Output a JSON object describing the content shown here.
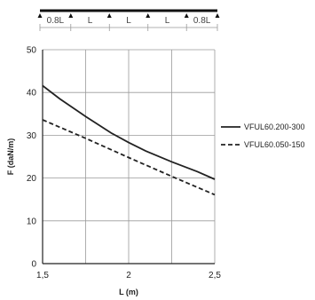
{
  "chart_data": {
    "type": "line",
    "xlabel": "L (m)",
    "ylabel": "F (daN/m)",
    "xlim": [
      1.5,
      2.5
    ],
    "ylim": [
      0,
      50
    ],
    "xticks": [
      1.5,
      2,
      2.5
    ],
    "xtick_labels": [
      "1,5",
      "2",
      "2,5"
    ],
    "yticks": [
      0,
      10,
      20,
      30,
      40,
      50
    ],
    "ytick_labels": [
      "0",
      "10",
      "20",
      "30",
      "40",
      "50"
    ],
    "grid": true,
    "legend_position": "right",
    "series": [
      {
        "name": "VFUL60.200-300",
        "style": "solid",
        "color": "#222222",
        "x": [
          1.5,
          1.6,
          1.75,
          1.9,
          2.0,
          2.1,
          2.25,
          2.4,
          2.5
        ],
        "y": [
          41.6,
          38.5,
          34.4,
          30.5,
          28.3,
          26.3,
          23.8,
          21.5,
          19.7
        ]
      },
      {
        "name": "VFUL60.050-150",
        "style": "dashed",
        "color": "#222222",
        "x": [
          1.5,
          1.75,
          2.0,
          2.25,
          2.5
        ],
        "y": [
          33.6,
          29.3,
          24.8,
          20.4,
          16.1
        ]
      }
    ]
  },
  "span_diagram": {
    "labels": [
      "0.8L",
      "L",
      "L",
      "L",
      "0.8L"
    ],
    "relative_lengths": [
      0.8,
      1,
      1,
      1,
      0.8
    ]
  }
}
